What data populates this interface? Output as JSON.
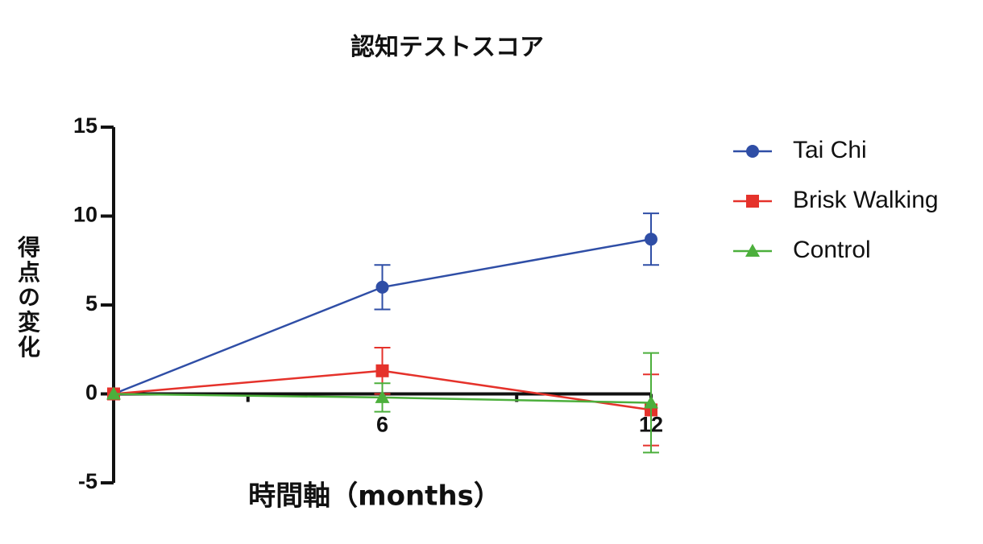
{
  "chart_data": {
    "type": "line",
    "title": "認知テストスコア",
    "xlabel": "時間軸（months）",
    "ylabel": "得点の変化",
    "x": [
      0,
      6,
      12
    ],
    "series": [
      {
        "name": "Tai Chi",
        "color": "#2f4ea6",
        "marker": "circle",
        "values": [
          0,
          6.0,
          8.7
        ],
        "errors": [
          null,
          1.25,
          1.45
        ]
      },
      {
        "name": "Brisk Walking",
        "color": "#e5322b",
        "marker": "square",
        "values": [
          0,
          1.3,
          -0.9
        ],
        "errors": [
          null,
          1.3,
          2.0
        ]
      },
      {
        "name": "Control",
        "color": "#4caf3c",
        "marker": "triangle",
        "values": [
          0,
          -0.2,
          -0.5
        ],
        "errors": [
          null,
          0.8,
          2.8
        ]
      }
    ],
    "xlim": [
      0,
      12
    ],
    "xticks": [
      6,
      12
    ],
    "xminor_ticks": [
      3,
      9
    ],
    "ylim": [
      -5,
      15
    ],
    "yticks": [
      -5,
      0,
      5,
      10,
      15
    ],
    "legend": "right"
  }
}
